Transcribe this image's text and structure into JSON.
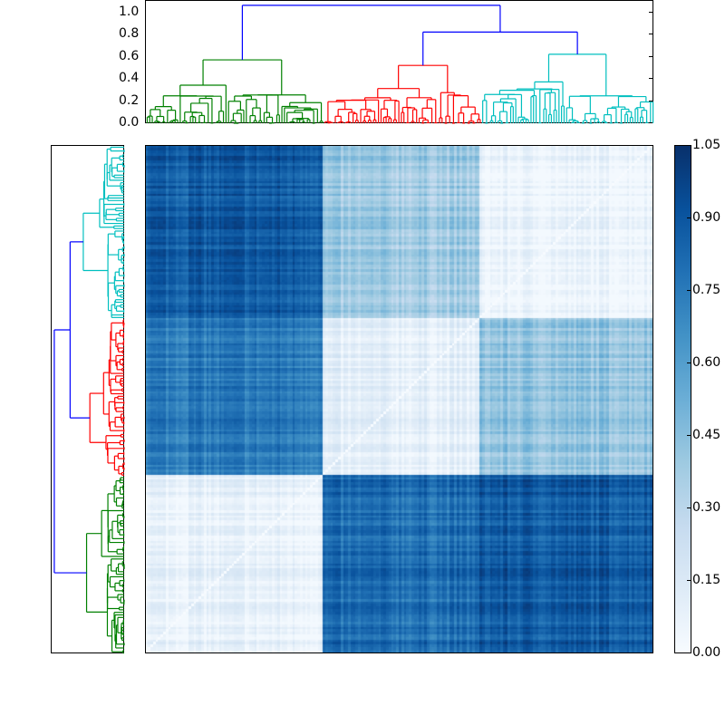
{
  "chart_data": [
    {
      "type": "dendrogram",
      "orientation": "top",
      "ylim": [
        0.0,
        1.1
      ],
      "yticks": [
        "0.0",
        "0.2",
        "0.4",
        "0.6",
        "0.8",
        "1.0"
      ],
      "clusters": [
        {
          "name": "green",
          "color": "#008000",
          "leaf_fraction": [
            0.0,
            0.35
          ],
          "top_merge": 0.57
        },
        {
          "name": "red",
          "color": "#ff0000",
          "leaf_fraction": [
            0.35,
            0.66
          ],
          "top_merge": 0.52
        },
        {
          "name": "cyan",
          "color": "#00bfbf",
          "leaf_fraction": [
            0.66,
            1.0
          ],
          "top_merge": 0.62
        }
      ],
      "links": [
        {
          "color": "#0000ff",
          "height": 0.82,
          "joins": [
            "red",
            "cyan"
          ]
        },
        {
          "color": "#0000ff",
          "height": 1.06,
          "joins": [
            "green",
            "red+cyan"
          ]
        }
      ]
    },
    {
      "type": "dendrogram",
      "orientation": "left",
      "clusters_top_to_bottom": [
        "cyan",
        "red",
        "green"
      ],
      "colors": [
        "#00bfbf",
        "#ff0000",
        "#008000"
      ]
    },
    {
      "type": "heatmap",
      "colormap": "Blues",
      "vmin": 0.0,
      "vmax": 1.05,
      "colorbar_ticks": [
        "0.00",
        "0.15",
        "0.30",
        "0.45",
        "0.60",
        "0.75",
        "0.90",
        "1.05"
      ],
      "blocks_x": [
        "green",
        "red",
        "cyan"
      ],
      "blocks_y_top_to_bottom": [
        "cyan",
        "red",
        "green"
      ],
      "block_values": [
        [
          0.88,
          0.38,
          0.06
        ],
        [
          0.75,
          0.1,
          0.42
        ],
        [
          0.08,
          0.8,
          0.88
        ]
      ],
      "diagonal": 0.0
    }
  ],
  "axes": {
    "top_dendro_yticks": [
      "0.0",
      "0.2",
      "0.4",
      "0.6",
      "0.8",
      "1.0"
    ],
    "colorbar_ticks": [
      "1.05",
      "0.90",
      "0.75",
      "0.60",
      "0.45",
      "0.30",
      "0.15",
      "0.00"
    ]
  }
}
